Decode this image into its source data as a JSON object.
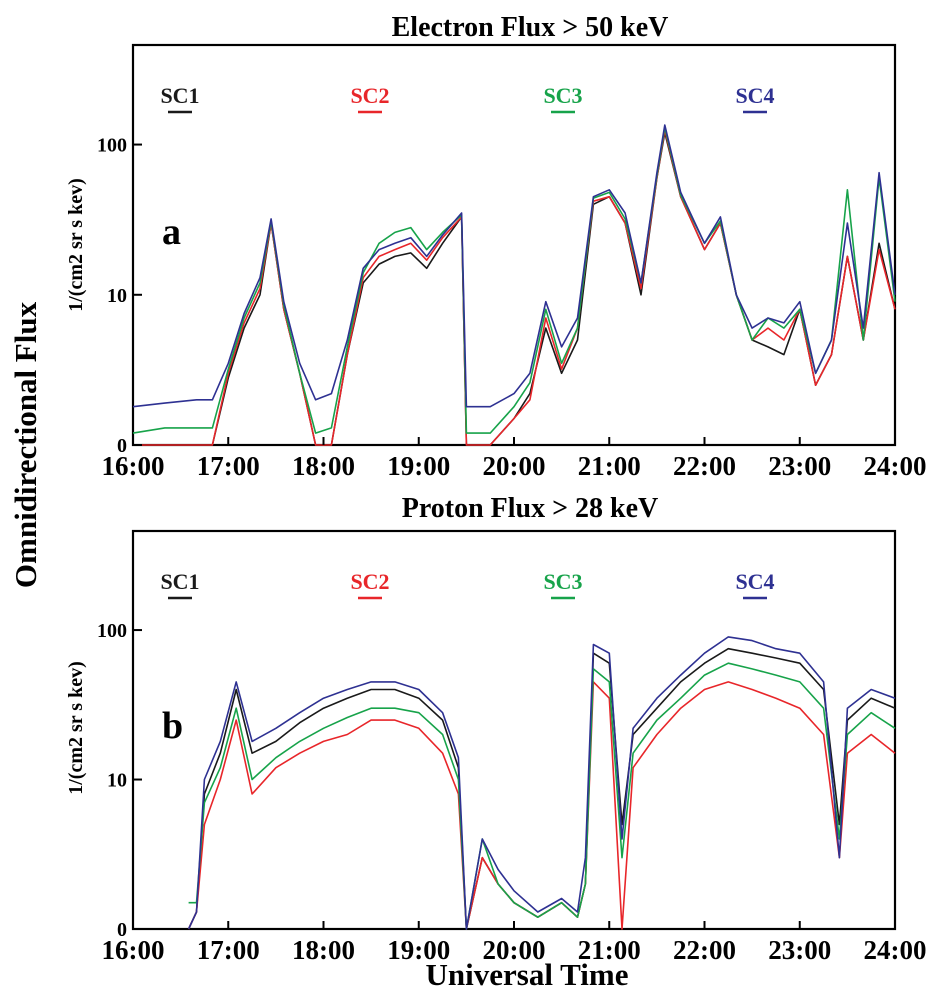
{
  "figure": {
    "ylabel_outer": "Omnidirectional Flux",
    "xlabel": "Universal Time"
  },
  "colors": {
    "SC1": "#1a1a1a",
    "SC2": "#e8262a",
    "SC3": "#17a34a",
    "SC4": "#2e3192"
  },
  "chart_data": [
    {
      "type": "line",
      "title": "Electron Flux > 50 keV",
      "panel_label": "a",
      "ylabel": "1/(cm2 sr s kev)",
      "xlabel": "",
      "y_scale": "log",
      "xlim": [
        "16:00",
        "24:00"
      ],
      "x_ticks": [
        "16:00",
        "17:00",
        "18:00",
        "19:00",
        "20:00",
        "21:00",
        "22:00",
        "23:00",
        "24:00"
      ],
      "y_ticks": [
        "0",
        "10",
        "100"
      ],
      "legend": [
        "SC1",
        "SC2",
        "SC3",
        "SC4"
      ],
      "legend_position": "top",
      "x": [
        "16:00",
        "16:20",
        "16:40",
        "16:50",
        "17:00",
        "17:10",
        "17:20",
        "17:27",
        "17:35",
        "17:45",
        "17:55",
        "18:05",
        "18:15",
        "18:25",
        "18:35",
        "18:45",
        "18:55",
        "19:05",
        "19:15",
        "19:27",
        "19:30",
        "19:45",
        "20:00",
        "20:10",
        "20:20",
        "20:30",
        "20:40",
        "20:50",
        "21:00",
        "21:10",
        "21:20",
        "21:30",
        "21:35",
        "21:45",
        "22:00",
        "22:10",
        "22:20",
        "22:30",
        "22:40",
        "22:50",
        "23:00",
        "23:10",
        "23:20",
        "23:30",
        "23:40",
        "23:50",
        "24:00"
      ],
      "series": [
        {
          "name": "SC1",
          "values": [
            1.0,
            1.0,
            1.0,
            1.0,
            2.8,
            6.0,
            10,
            30,
            8,
            3,
            1.0,
            1.0,
            4,
            12,
            16,
            18,
            19,
            15,
            22,
            33,
            1.0,
            1.0,
            1.5,
            2.2,
            6,
            3.0,
            5,
            40,
            45,
            30,
            10,
            60,
            120,
            45,
            20,
            30,
            10,
            5,
            4.5,
            4,
            8,
            2.5,
            4,
            18,
            5,
            22,
            8
          ]
        },
        {
          "name": "SC2",
          "values": [
            0.9,
            1.0,
            1.0,
            1.0,
            3.0,
            6.5,
            11,
            30,
            8,
            3,
            1.0,
            1.0,
            4,
            13,
            18,
            20,
            22,
            17,
            24,
            33,
            1.0,
            1.0,
            1.5,
            2.0,
            7,
            3.2,
            6,
            42,
            45,
            30,
            11,
            60,
            125,
            45,
            20,
            30,
            10,
            5,
            6,
            5,
            8,
            2.5,
            4,
            18,
            5,
            20,
            8
          ]
        },
        {
          "name": "SC3",
          "values": [
            1.2,
            1.3,
            1.3,
            1.3,
            3.2,
            7.0,
            12,
            31,
            8.5,
            3,
            1.2,
            1.3,
            4.5,
            14,
            22,
            26,
            28,
            20,
            26,
            34,
            1.2,
            1.2,
            1.8,
            2.6,
            8,
            3.5,
            6,
            44,
            48,
            32,
            12,
            62,
            130,
            46,
            22,
            31,
            10,
            5,
            7,
            6,
            8,
            3,
            5,
            50,
            5,
            60,
            9
          ]
        },
        {
          "name": "SC4",
          "values": [
            1.8,
            1.9,
            2.0,
            2.0,
            3.5,
            7.5,
            13,
            32,
            9,
            3.5,
            2.0,
            2.2,
            5,
            15,
            20,
            22,
            24,
            18,
            25,
            35,
            1.8,
            1.8,
            2.2,
            3.0,
            9,
            4.5,
            7,
            45,
            50,
            35,
            12,
            65,
            135,
            48,
            22,
            33,
            10,
            6,
            7,
            6.5,
            9,
            3,
            5,
            30,
            6,
            65,
            10
          ]
        }
      ]
    },
    {
      "type": "line",
      "title": "Proton Flux > 28 keV",
      "panel_label": "b",
      "ylabel": "1/(cm2 sr s kev)",
      "xlabel": "Universal Time",
      "y_scale": "log",
      "xlim": [
        "16:00",
        "24:00"
      ],
      "x_ticks": [
        "16:00",
        "17:00",
        "18:00",
        "19:00",
        "20:00",
        "21:00",
        "22:00",
        "23:00",
        "24:00"
      ],
      "y_ticks": [
        "0",
        "10",
        "100"
      ],
      "legend": [
        "SC1",
        "SC2",
        "SC3",
        "SC4"
      ],
      "legend_position": "top",
      "x": [
        "16:35",
        "16:40",
        "16:45",
        "16:55",
        "17:05",
        "17:15",
        "17:30",
        "17:45",
        "18:00",
        "18:15",
        "18:30",
        "18:45",
        "19:00",
        "19:15",
        "19:25",
        "19:30",
        "19:40",
        "19:50",
        "20:00",
        "20:15",
        "20:30",
        "20:40",
        "20:45",
        "20:50",
        "21:00",
        "21:08",
        "21:15",
        "21:30",
        "21:45",
        "22:00",
        "22:15",
        "22:30",
        "22:45",
        "23:00",
        "23:15",
        "23:25",
        "23:30",
        "23:45",
        "24:00"
      ],
      "series": [
        {
          "name": "SC1",
          "values": [
            1.0,
            1.3,
            8,
            15,
            40,
            15,
            18,
            24,
            30,
            35,
            40,
            40,
            35,
            25,
            12,
            1.0,
            3,
            2,
            1.5,
            1.2,
            1.5,
            1.2,
            2,
            70,
            60,
            5,
            20,
            30,
            45,
            60,
            75,
            70,
            65,
            60,
            40,
            5,
            25,
            35,
            30
          ]
        },
        {
          "name": "SC2",
          "values": [
            1.0,
            1.3,
            5,
            10,
            25,
            8,
            12,
            15,
            18,
            20,
            25,
            25,
            22,
            15,
            8,
            1.0,
            3,
            2,
            1.5,
            1.2,
            1.5,
            1.2,
            2,
            45,
            35,
            1.0,
            12,
            20,
            30,
            40,
            45,
            40,
            35,
            30,
            20,
            3,
            15,
            20,
            15
          ]
        },
        {
          "name": "SC3",
          "values": [
            1.5,
            1.5,
            7,
            12,
            30,
            10,
            14,
            18,
            22,
            26,
            30,
            30,
            28,
            20,
            10,
            1.0,
            4,
            2,
            1.5,
            1.2,
            1.5,
            1.2,
            2,
            55,
            45,
            3,
            15,
            25,
            35,
            50,
            60,
            55,
            50,
            45,
            30,
            4,
            20,
            28,
            22
          ]
        },
        {
          "name": "SC4",
          "values": [
            1.0,
            1.3,
            10,
            18,
            45,
            18,
            22,
            28,
            35,
            40,
            45,
            45,
            40,
            28,
            14,
            1.0,
            4,
            2.5,
            1.8,
            1.3,
            1.6,
            1.3,
            3,
            80,
            70,
            4,
            22,
            35,
            50,
            70,
            90,
            85,
            75,
            70,
            45,
            3,
            30,
            40,
            35
          ]
        }
      ]
    }
  ]
}
